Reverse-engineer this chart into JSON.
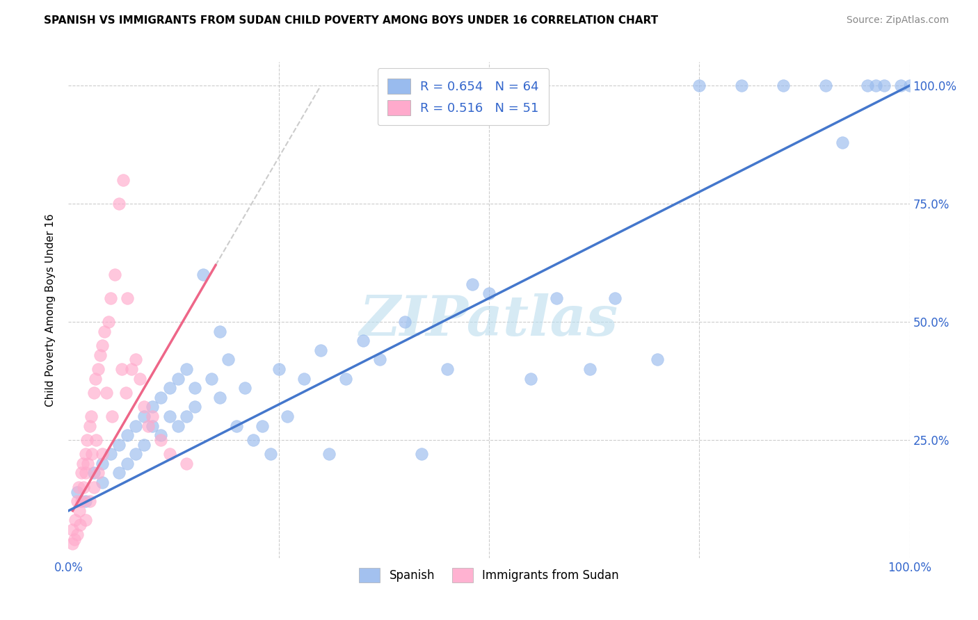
{
  "title": "SPANISH VS IMMIGRANTS FROM SUDAN CHILD POVERTY AMONG BOYS UNDER 16 CORRELATION CHART",
  "source": "Source: ZipAtlas.com",
  "ylabel": "Child Poverty Among Boys Under 16",
  "legend1_label": "R = 0.654   N = 64",
  "legend2_label": "R = 0.516   N = 51",
  "legend_bottom1": "Spanish",
  "legend_bottom2": "Immigrants from Sudan",
  "blue_color": "#99BBEE",
  "pink_color": "#FFAACC",
  "blue_line_color": "#4477CC",
  "pink_line_color": "#EE6688",
  "watermark": "ZIPatlas",
  "watermark_color": "#BBDDEE",
  "blue_scatter_x": [
    0.01,
    0.02,
    0.03,
    0.04,
    0.04,
    0.05,
    0.06,
    0.06,
    0.07,
    0.07,
    0.08,
    0.08,
    0.09,
    0.09,
    0.1,
    0.1,
    0.11,
    0.11,
    0.12,
    0.12,
    0.13,
    0.13,
    0.14,
    0.14,
    0.15,
    0.15,
    0.16,
    0.17,
    0.18,
    0.18,
    0.19,
    0.2,
    0.21,
    0.22,
    0.23,
    0.24,
    0.25,
    0.26,
    0.28,
    0.3,
    0.31,
    0.33,
    0.35,
    0.37,
    0.4,
    0.42,
    0.45,
    0.48,
    0.5,
    0.55,
    0.58,
    0.62,
    0.65,
    0.7,
    0.75,
    0.8,
    0.85,
    0.9,
    0.92,
    0.95,
    0.96,
    0.97,
    0.99,
    1.0
  ],
  "blue_scatter_y": [
    0.14,
    0.12,
    0.18,
    0.16,
    0.2,
    0.22,
    0.18,
    0.24,
    0.2,
    0.26,
    0.22,
    0.28,
    0.24,
    0.3,
    0.28,
    0.32,
    0.26,
    0.34,
    0.3,
    0.36,
    0.28,
    0.38,
    0.3,
    0.4,
    0.32,
    0.36,
    0.6,
    0.38,
    0.48,
    0.34,
    0.42,
    0.28,
    0.36,
    0.25,
    0.28,
    0.22,
    0.4,
    0.3,
    0.38,
    0.44,
    0.22,
    0.38,
    0.46,
    0.42,
    0.5,
    0.22,
    0.4,
    0.58,
    0.56,
    0.38,
    0.55,
    0.4,
    0.55,
    0.42,
    1.0,
    1.0,
    1.0,
    1.0,
    0.88,
    1.0,
    1.0,
    1.0,
    1.0,
    1.0
  ],
  "pink_scatter_x": [
    0.005,
    0.005,
    0.007,
    0.008,
    0.01,
    0.01,
    0.012,
    0.013,
    0.014,
    0.015,
    0.015,
    0.017,
    0.018,
    0.02,
    0.02,
    0.02,
    0.022,
    0.023,
    0.025,
    0.025,
    0.027,
    0.028,
    0.03,
    0.03,
    0.032,
    0.033,
    0.035,
    0.035,
    0.038,
    0.04,
    0.04,
    0.043,
    0.045,
    0.048,
    0.05,
    0.052,
    0.055,
    0.06,
    0.063,
    0.065,
    0.068,
    0.07,
    0.075,
    0.08,
    0.085,
    0.09,
    0.095,
    0.1,
    0.11,
    0.12,
    0.14
  ],
  "pink_scatter_y": [
    0.03,
    0.06,
    0.04,
    0.08,
    0.12,
    0.05,
    0.15,
    0.1,
    0.07,
    0.18,
    0.12,
    0.2,
    0.15,
    0.22,
    0.08,
    0.18,
    0.25,
    0.2,
    0.28,
    0.12,
    0.3,
    0.22,
    0.35,
    0.15,
    0.38,
    0.25,
    0.4,
    0.18,
    0.43,
    0.45,
    0.22,
    0.48,
    0.35,
    0.5,
    0.55,
    0.3,
    0.6,
    0.75,
    0.4,
    0.8,
    0.35,
    0.55,
    0.4,
    0.42,
    0.38,
    0.32,
    0.28,
    0.3,
    0.25,
    0.22,
    0.2
  ],
  "blue_trend": [
    0.0,
    1.0,
    0.1,
    1.0
  ],
  "pink_trend_solid": [
    0.005,
    0.175,
    0.1,
    0.62
  ],
  "pink_trend_dashed": [
    0.175,
    0.3,
    0.62,
    1.0
  ]
}
